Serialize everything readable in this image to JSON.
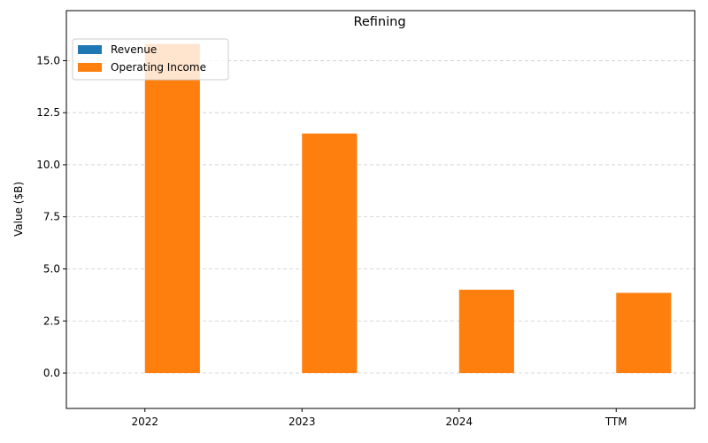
{
  "chart_data": {
    "type": "bar",
    "title": "Refining",
    "xlabel": "",
    "ylabel": "Value ($B)",
    "categories": [
      "2022",
      "2023",
      "2024",
      "TTM"
    ],
    "series": [
      {
        "name": "Revenue",
        "color": "#1f77b4",
        "values": [
          0,
          0,
          0,
          0
        ]
      },
      {
        "name": "Operating Income",
        "color": "#ff7f0e",
        "values": [
          15.8,
          11.5,
          4.0,
          3.85
        ]
      }
    ],
    "ylim": [
      -1.7,
      17.4
    ],
    "yticks": [
      "0.0",
      "2.5",
      "5.0",
      "7.5",
      "10.0",
      "12.5",
      "15.0"
    ],
    "grid": "y-dashed",
    "legend_position": "top-left"
  }
}
